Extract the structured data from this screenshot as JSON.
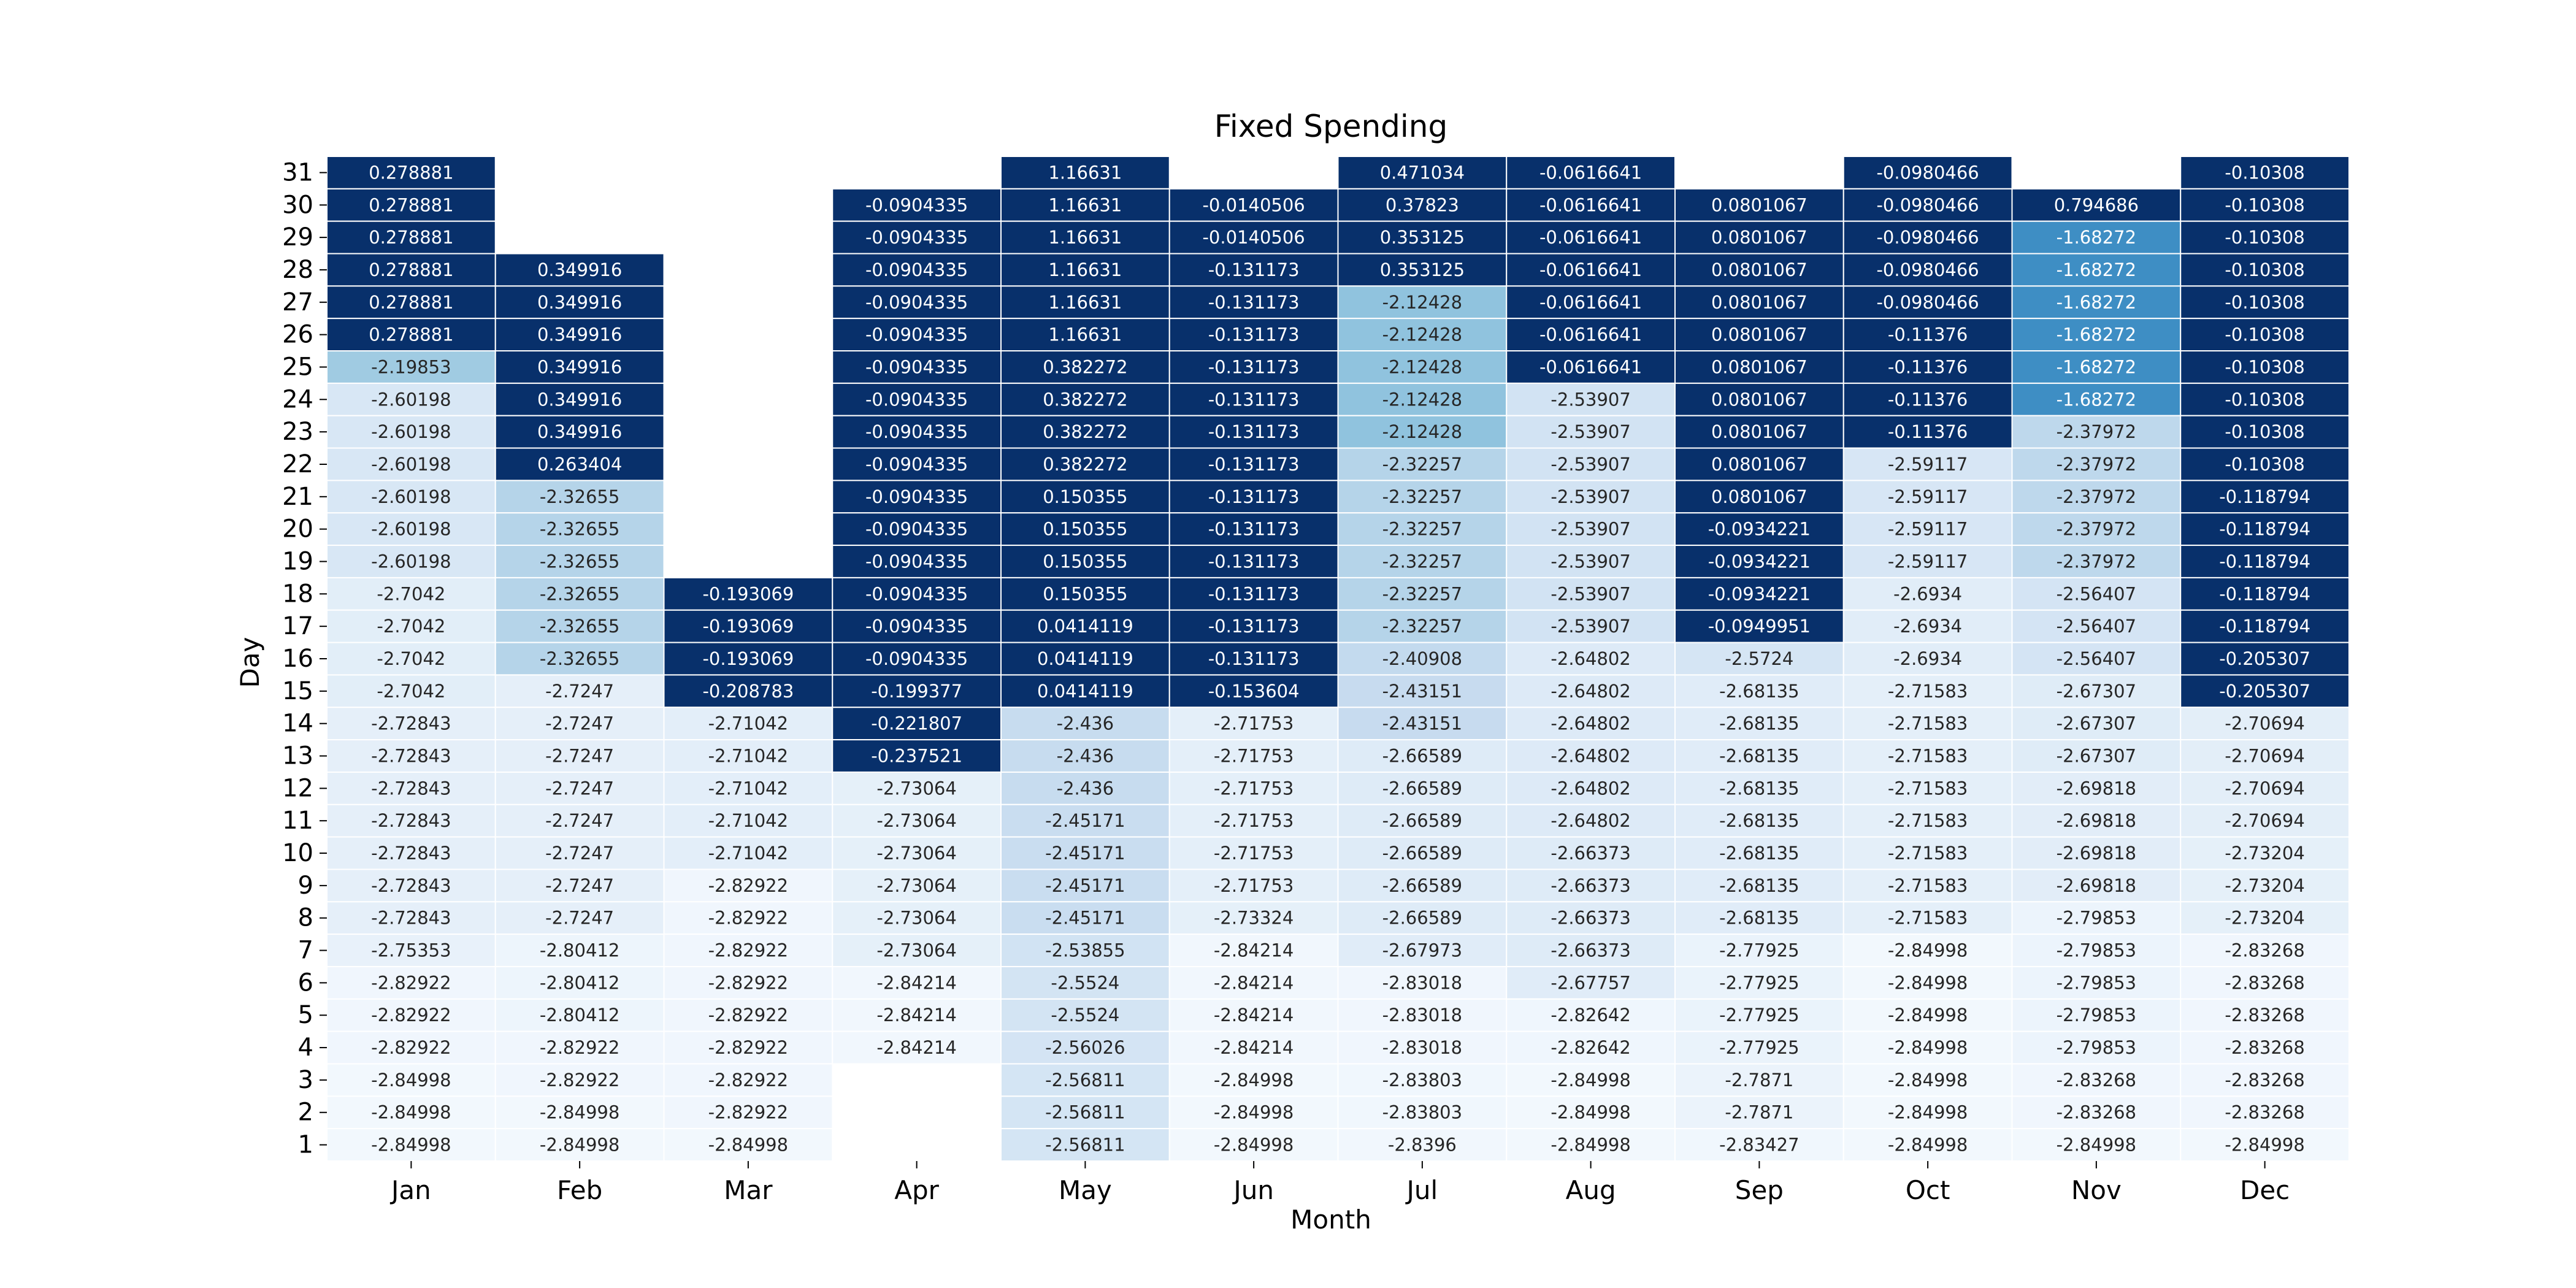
{
  "chart_data": {
    "type": "heatmap",
    "title": "Fixed Spending",
    "xlabel": "Month",
    "ylabel": "Day",
    "months": [
      "Jan",
      "Feb",
      "Mar",
      "Apr",
      "May",
      "Jun",
      "Jul",
      "Aug",
      "Sep",
      "Oct",
      "Nov",
      "Dec"
    ],
    "days": [
      31,
      30,
      29,
      28,
      27,
      26,
      25,
      24,
      23,
      22,
      21,
      20,
      19,
      18,
      17,
      16,
      15,
      14,
      13,
      12,
      11,
      10,
      9,
      8,
      7,
      6,
      5,
      4,
      3,
      2,
      1
    ],
    "colormap": "Blues",
    "color_range": [
      -2.9,
      -1.0
    ],
    "grid_line_color": "#ffffff",
    "values": [
      [
        "0.278881",
        "0.278881",
        "0.278881",
        "0.278881",
        "0.278881",
        "0.278881",
        "-2.19853",
        "-2.60198",
        "-2.60198",
        "-2.60198",
        "-2.60198",
        "-2.60198",
        "-2.60198",
        "-2.7042",
        "-2.7042",
        "-2.7042",
        "-2.7042",
        "-2.72843",
        "-2.72843",
        "-2.72843",
        "-2.72843",
        "-2.72843",
        "-2.72843",
        "-2.72843",
        "-2.75353",
        "-2.82922",
        "-2.82922",
        "-2.82922",
        "-2.84998",
        "-2.84998",
        "-2.84998"
      ],
      [
        null,
        null,
        null,
        "0.349916",
        "0.349916",
        "0.349916",
        "0.349916",
        "0.349916",
        "0.349916",
        "0.263404",
        "-2.32655",
        "-2.32655",
        "-2.32655",
        "-2.32655",
        "-2.32655",
        "-2.32655",
        "-2.7247",
        "-2.7247",
        "-2.7247",
        "-2.7247",
        "-2.7247",
        "-2.7247",
        "-2.7247",
        "-2.7247",
        "-2.80412",
        "-2.80412",
        "-2.80412",
        "-2.82922",
        "-2.82922",
        "-2.84998",
        "-2.84998"
      ],
      [
        null,
        null,
        null,
        null,
        null,
        null,
        null,
        null,
        null,
        null,
        null,
        null,
        null,
        "-0.193069",
        "-0.193069",
        "-0.193069",
        "-0.208783",
        "-2.71042",
        "-2.71042",
        "-2.71042",
        "-2.71042",
        "-2.71042",
        "-2.82922",
        "-2.82922",
        "-2.82922",
        "-2.82922",
        "-2.82922",
        "-2.82922",
        "-2.82922",
        "-2.82922",
        "-2.84998"
      ],
      [
        null,
        "-0.0904335",
        "-0.0904335",
        "-0.0904335",
        "-0.0904335",
        "-0.0904335",
        "-0.0904335",
        "-0.0904335",
        "-0.0904335",
        "-0.0904335",
        "-0.0904335",
        "-0.0904335",
        "-0.0904335",
        "-0.0904335",
        "-0.0904335",
        "-0.0904335",
        "-0.199377",
        "-0.221807",
        "-0.237521",
        "-2.73064",
        "-2.73064",
        "-2.73064",
        "-2.73064",
        "-2.73064",
        "-2.73064",
        "-2.84214",
        "-2.84214",
        "-2.84214",
        null,
        null,
        null
      ],
      [
        "1.16631",
        "1.16631",
        "1.16631",
        "1.16631",
        "1.16631",
        "1.16631",
        "0.382272",
        "0.382272",
        "0.382272",
        "0.382272",
        "0.150355",
        "0.150355",
        "0.150355",
        "0.150355",
        "0.0414119",
        "0.0414119",
        "0.0414119",
        "-2.436",
        "-2.436",
        "-2.436",
        "-2.45171",
        "-2.45171",
        "-2.45171",
        "-2.45171",
        "-2.53855",
        "-2.5524",
        "-2.5524",
        "-2.56026",
        "-2.56811",
        "-2.56811",
        "-2.56811"
      ],
      [
        null,
        "-0.0140506",
        "-0.0140506",
        "-0.131173",
        "-0.131173",
        "-0.131173",
        "-0.131173",
        "-0.131173",
        "-0.131173",
        "-0.131173",
        "-0.131173",
        "-0.131173",
        "-0.131173",
        "-0.131173",
        "-0.131173",
        "-0.131173",
        "-0.153604",
        "-2.71753",
        "-2.71753",
        "-2.71753",
        "-2.71753",
        "-2.71753",
        "-2.71753",
        "-2.73324",
        "-2.84214",
        "-2.84214",
        "-2.84214",
        "-2.84214",
        "-2.84998",
        "-2.84998",
        "-2.84998"
      ],
      [
        "0.471034",
        "0.37823",
        "0.353125",
        "0.353125",
        "-2.12428",
        "-2.12428",
        "-2.12428",
        "-2.12428",
        "-2.12428",
        "-2.32257",
        "-2.32257",
        "-2.32257",
        "-2.32257",
        "-2.32257",
        "-2.32257",
        "-2.40908",
        "-2.43151",
        "-2.43151",
        "-2.66589",
        "-2.66589",
        "-2.66589",
        "-2.66589",
        "-2.66589",
        "-2.66589",
        "-2.67973",
        "-2.83018",
        "-2.83018",
        "-2.83018",
        "-2.83803",
        "-2.83803",
        "-2.8396"
      ],
      [
        "-0.0616641",
        "-0.0616641",
        "-0.0616641",
        "-0.0616641",
        "-0.0616641",
        "-0.0616641",
        "-0.0616641",
        "-2.53907",
        "-2.53907",
        "-2.53907",
        "-2.53907",
        "-2.53907",
        "-2.53907",
        "-2.53907",
        "-2.53907",
        "-2.64802",
        "-2.64802",
        "-2.64802",
        "-2.64802",
        "-2.64802",
        "-2.64802",
        "-2.66373",
        "-2.66373",
        "-2.66373",
        "-2.66373",
        "-2.67757",
        "-2.82642",
        "-2.82642",
        "-2.84998",
        "-2.84998",
        "-2.84998"
      ],
      [
        null,
        "0.0801067",
        "0.0801067",
        "0.0801067",
        "0.0801067",
        "0.0801067",
        "0.0801067",
        "0.0801067",
        "0.0801067",
        "0.0801067",
        "0.0801067",
        "-0.0934221",
        "-0.0934221",
        "-0.0934221",
        "-0.0949951",
        "-2.5724",
        "-2.68135",
        "-2.68135",
        "-2.68135",
        "-2.68135",
        "-2.68135",
        "-2.68135",
        "-2.68135",
        "-2.68135",
        "-2.77925",
        "-2.77925",
        "-2.77925",
        "-2.77925",
        "-2.7871",
        "-2.7871",
        "-2.83427"
      ],
      [
        "-0.0980466",
        "-0.0980466",
        "-0.0980466",
        "-0.0980466",
        "-0.0980466",
        "-0.11376",
        "-0.11376",
        "-0.11376",
        "-0.11376",
        "-2.59117",
        "-2.59117",
        "-2.59117",
        "-2.59117",
        "-2.6934",
        "-2.6934",
        "-2.6934",
        "-2.71583",
        "-2.71583",
        "-2.71583",
        "-2.71583",
        "-2.71583",
        "-2.71583",
        "-2.71583",
        "-2.71583",
        "-2.84998",
        "-2.84998",
        "-2.84998",
        "-2.84998",
        "-2.84998",
        "-2.84998",
        "-2.84998"
      ],
      [
        null,
        "0.794686",
        "-1.68272",
        "-1.68272",
        "-1.68272",
        "-1.68272",
        "-1.68272",
        "-1.68272",
        "-2.37972",
        "-2.37972",
        "-2.37972",
        "-2.37972",
        "-2.37972",
        "-2.56407",
        "-2.56407",
        "-2.56407",
        "-2.67307",
        "-2.67307",
        "-2.67307",
        "-2.69818",
        "-2.69818",
        "-2.69818",
        "-2.69818",
        "-2.79853",
        "-2.79853",
        "-2.79853",
        "-2.79853",
        "-2.79853",
        "-2.83268",
        "-2.83268",
        "-2.84998"
      ],
      [
        "-0.10308",
        "-0.10308",
        "-0.10308",
        "-0.10308",
        "-0.10308",
        "-0.10308",
        "-0.10308",
        "-0.10308",
        "-0.10308",
        "-0.10308",
        "-0.118794",
        "-0.118794",
        "-0.118794",
        "-0.118794",
        "-0.118794",
        "-0.205307",
        "-0.205307",
        "-2.70694",
        "-2.70694",
        "-2.70694",
        "-2.70694",
        "-2.73204",
        "-2.73204",
        "-2.73204",
        "-2.83268",
        "-2.83268",
        "-2.83268",
        "-2.83268",
        "-2.83268",
        "-2.83268",
        "-2.84998"
      ]
    ]
  }
}
